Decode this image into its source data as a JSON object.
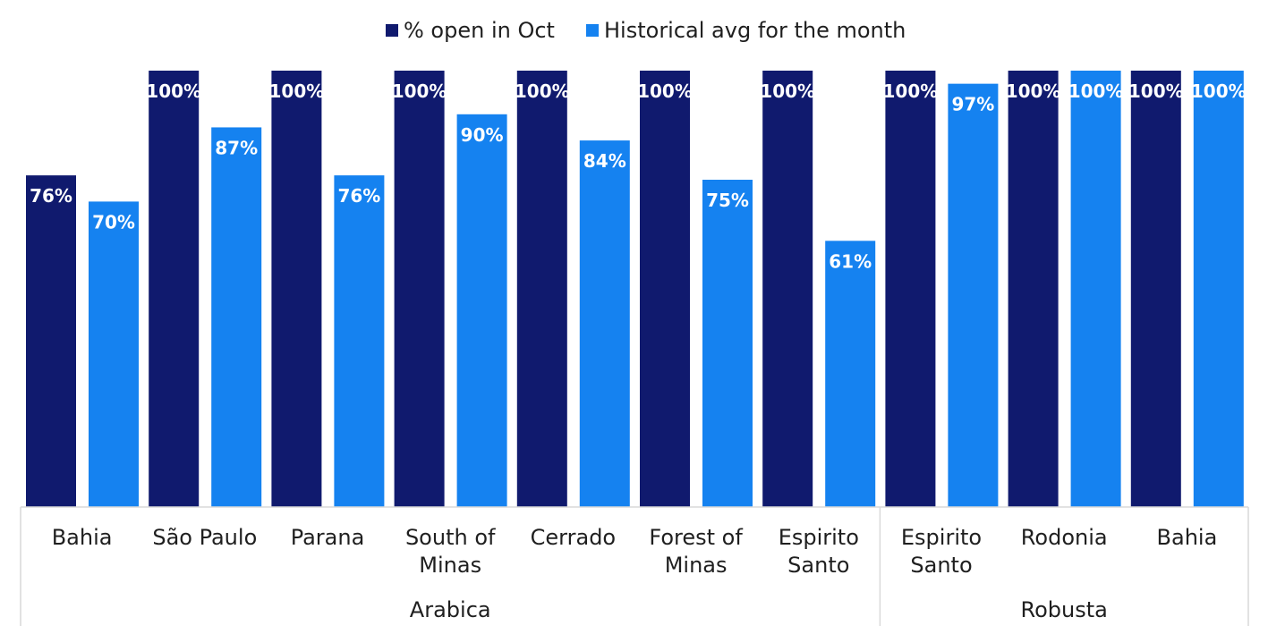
{
  "chart_data": {
    "type": "bar",
    "title": "",
    "xlabel": "",
    "ylabel": "",
    "ylim": [
      0,
      100
    ],
    "grid": false,
    "legend_position": "top-center",
    "value_suffix": "%",
    "colors": {
      "series_1": "#101a6e",
      "series_2": "#1582f0",
      "axis": "#d9d9d9",
      "text": "#1f1f1f",
      "label": "#ffffff"
    },
    "categories": [
      [
        "Bahia"
      ],
      [
        "São Paulo"
      ],
      [
        "Parana"
      ],
      [
        "South of",
        "Minas"
      ],
      [
        "Cerrado"
      ],
      [
        "Forest of",
        "Minas"
      ],
      [
        "Espirito",
        "Santo"
      ],
      [
        "Espirito",
        "Santo"
      ],
      [
        "Rodonia"
      ],
      [
        "Bahia"
      ]
    ],
    "groups": [
      {
        "name": "Arabica",
        "start": 0,
        "end": 6
      },
      {
        "name": "Robusta",
        "start": 7,
        "end": 9
      }
    ],
    "series": [
      {
        "name": "% open in Oct",
        "values": [
          76,
          100,
          100,
          100,
          100,
          100,
          100,
          100,
          100,
          100
        ]
      },
      {
        "name": "Historical avg for the month",
        "values": [
          70,
          87,
          76,
          90,
          84,
          75,
          61,
          97,
          100,
          100
        ]
      }
    ]
  }
}
